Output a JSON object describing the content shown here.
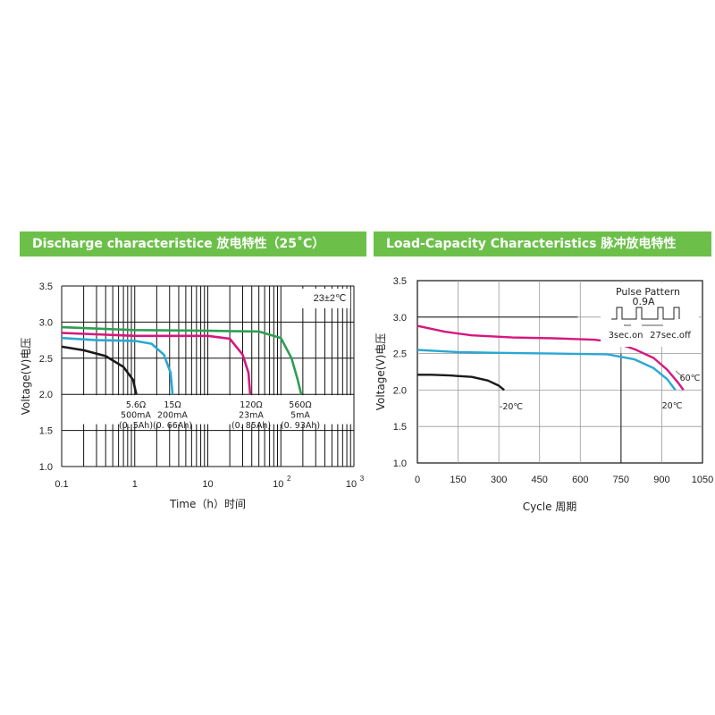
{
  "colors": {
    "banner": "#6cc04a",
    "magenta": "#d6177e",
    "cyan": "#2aa8d4",
    "green": "#2e9e52",
    "black": "#1a1a1a"
  },
  "chart_data": [
    {
      "type": "line",
      "banner_title": "Discharge characteristice  放电特性（25˚C）",
      "xlabel": "Time（h）时间",
      "ylabel": "Voltage(V)电压",
      "x_scale": "log",
      "xlim": [
        0.1,
        1000
      ],
      "ylim": [
        1.0,
        3.5
      ],
      "x_ticks": [
        {
          "v": 0.1,
          "label": "0.1"
        },
        {
          "v": 1,
          "label": "1"
        },
        {
          "v": 10,
          "label": "10"
        },
        {
          "v": 100,
          "label": "10",
          "sup": "2"
        },
        {
          "v": 1000,
          "label": "10",
          "sup": "3"
        }
      ],
      "y_ticks": [
        {
          "v": 1.0,
          "label": "1.0"
        },
        {
          "v": 1.5,
          "label": "1.5"
        },
        {
          "v": 2.0,
          "label": "2.0"
        },
        {
          "v": 2.5,
          "label": "2.5"
        },
        {
          "v": 3.0,
          "label": "3.0"
        },
        {
          "v": 3.5,
          "label": "3.5"
        }
      ],
      "condition_label": "23±2℃",
      "series": [
        {
          "color": "#1a1a1a",
          "points": [
            [
              0.1,
              2.66
            ],
            [
              0.2,
              2.61
            ],
            [
              0.4,
              2.53
            ],
            [
              0.7,
              2.38
            ],
            [
              0.95,
              2.2
            ],
            [
              1.05,
              2.0
            ]
          ]
        },
        {
          "color": "#2aa8d4",
          "points": [
            [
              0.1,
              2.78
            ],
            [
              0.3,
              2.75
            ],
            [
              1,
              2.74
            ],
            [
              1.7,
              2.7
            ],
            [
              2.5,
              2.55
            ],
            [
              3.1,
              2.3
            ],
            [
              3.3,
              2.0
            ]
          ]
        },
        {
          "color": "#d6177e",
          "points": [
            [
              0.1,
              2.85
            ],
            [
              1,
              2.81
            ],
            [
              10,
              2.81
            ],
            [
              20,
              2.77
            ],
            [
              30,
              2.55
            ],
            [
              36,
              2.3
            ],
            [
              38,
              2.0
            ]
          ]
        },
        {
          "color": "#2e9e52",
          "points": [
            [
              0.1,
              2.93
            ],
            [
              1,
              2.89
            ],
            [
              10,
              2.88
            ],
            [
              50,
              2.87
            ],
            [
              100,
              2.78
            ],
            [
              140,
              2.5
            ],
            [
              170,
              2.2
            ],
            [
              190,
              2.0
            ]
          ]
        }
      ],
      "annotations": [
        {
          "lines": [
            "5.6Ω",
            "500mA",
            "(0. 5Ah)"
          ]
        },
        {
          "lines": [
            "15Ω",
            "200mA",
            "(0. 66Ah)"
          ]
        },
        {
          "lines": [
            "120Ω",
            "23mA",
            "(0. 85Ah)"
          ]
        },
        {
          "lines": [
            "560Ω",
            "5mA",
            "(0. 93Ah)"
          ]
        }
      ]
    },
    {
      "type": "line",
      "banner_title": "Load-Capacity Characteristics  脉冲放电特性",
      "xlabel": "Cycle 周期",
      "ylabel": "Voltage(V)电压",
      "xlim": [
        0,
        1050
      ],
      "ylim": [
        1.0,
        3.5
      ],
      "x_ticks": [
        0,
        150,
        300,
        450,
        600,
        750,
        900,
        1050
      ],
      "y_ticks": [
        "1.0",
        "1.5",
        "2.0",
        "2.5",
        "3.0",
        "3.5"
      ],
      "pulse_legend": {
        "title": "Pulse  Pattern",
        "current": "0.9A",
        "on": "3sec.on",
        "off": "27sec.off"
      },
      "series": [
        {
          "name": "-20℃",
          "color": "#1a1a1a",
          "points": [
            [
              0,
              2.21
            ],
            [
              50,
              2.21
            ],
            [
              120,
              2.2
            ],
            [
              200,
              2.18
            ],
            [
              260,
              2.13
            ],
            [
              300,
              2.06
            ],
            [
              320,
              2.0
            ]
          ]
        },
        {
          "name": "20℃",
          "color": "#2aa8d4",
          "points": [
            [
              0,
              2.55
            ],
            [
              150,
              2.52
            ],
            [
              300,
              2.51
            ],
            [
              500,
              2.5
            ],
            [
              700,
              2.49
            ],
            [
              800,
              2.42
            ],
            [
              870,
              2.3
            ],
            [
              920,
              2.15
            ],
            [
              950,
              2.0
            ]
          ]
        },
        {
          "name": "60℃",
          "color": "#d6177e",
          "points": [
            [
              0,
              2.88
            ],
            [
              100,
              2.8
            ],
            [
              200,
              2.75
            ],
            [
              350,
              2.72
            ],
            [
              500,
              2.71
            ],
            [
              650,
              2.69
            ],
            [
              720,
              2.66
            ],
            [
              800,
              2.56
            ],
            [
              870,
              2.44
            ],
            [
              920,
              2.28
            ],
            [
              960,
              2.1
            ],
            [
              980,
              2.0
            ]
          ]
        }
      ]
    }
  ]
}
